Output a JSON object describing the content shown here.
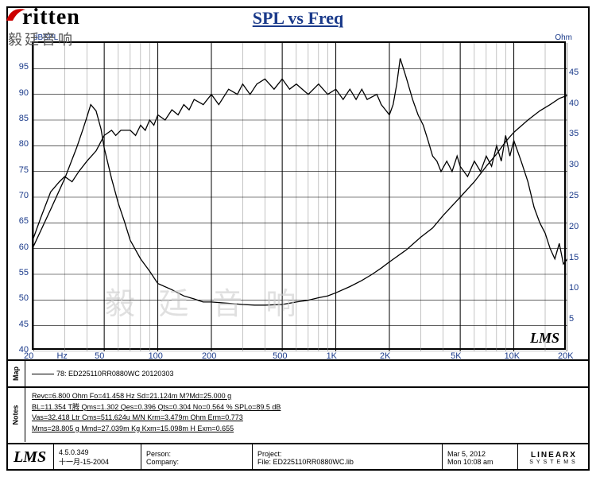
{
  "title": "SPL vs Freq",
  "logo": {
    "brand": "ritten",
    "sub": "毅廷音响"
  },
  "watermark": "毅 廷 音 响",
  "chart": {
    "type": "line",
    "x_scale": "log",
    "xlim": [
      20,
      20000
    ],
    "ylabel_left": "dBSPL",
    "ylabel_right": "Ohm",
    "ylim_left": [
      40,
      100
    ],
    "ylim_right": [
      0,
      50
    ],
    "x_ticks_major": [
      20,
      50,
      100,
      200,
      500,
      1000,
      2000,
      5000,
      10000,
      20000
    ],
    "x_tick_labels": [
      "20",
      "50",
      "100",
      "200",
      "500",
      "1K",
      "2K",
      "5K",
      "10K",
      "20K"
    ],
    "x_unit_label": "Hz",
    "y_ticks_left": [
      40,
      45,
      50,
      55,
      60,
      65,
      70,
      75,
      80,
      85,
      90,
      95
    ],
    "y_ticks_right": [
      5,
      10,
      15,
      20,
      25,
      30,
      35,
      40,
      45
    ],
    "x_minor_grid": [
      30,
      40,
      60,
      70,
      80,
      90,
      300,
      400,
      600,
      700,
      800,
      900,
      3000,
      4000,
      6000,
      7000,
      8000,
      9000,
      15000
    ],
    "line_color": "#000000",
    "grid_major_color": "#000000",
    "grid_minor_color": "#888888",
    "axis_label_color": "#1a3a8a",
    "background_color": "#ffffff",
    "corner_label": "LMS",
    "spl_series": [
      [
        20,
        62
      ],
      [
        22,
        66
      ],
      [
        25,
        71
      ],
      [
        28,
        73
      ],
      [
        30,
        74
      ],
      [
        33,
        73
      ],
      [
        36,
        75
      ],
      [
        40,
        77
      ],
      [
        45,
        79
      ],
      [
        50,
        82
      ],
      [
        55,
        83
      ],
      [
        58,
        82
      ],
      [
        62,
        83
      ],
      [
        70,
        83
      ],
      [
        75,
        82
      ],
      [
        80,
        84
      ],
      [
        85,
        83
      ],
      [
        90,
        85
      ],
      [
        95,
        84
      ],
      [
        100,
        86
      ],
      [
        110,
        85
      ],
      [
        120,
        87
      ],
      [
        130,
        86
      ],
      [
        140,
        88
      ],
      [
        150,
        87
      ],
      [
        160,
        89
      ],
      [
        180,
        88
      ],
      [
        200,
        90
      ],
      [
        220,
        88
      ],
      [
        250,
        91
      ],
      [
        280,
        90
      ],
      [
        300,
        92
      ],
      [
        330,
        90
      ],
      [
        360,
        92
      ],
      [
        400,
        93
      ],
      [
        450,
        91
      ],
      [
        500,
        93
      ],
      [
        550,
        91
      ],
      [
        600,
        92
      ],
      [
        700,
        90
      ],
      [
        800,
        92
      ],
      [
        900,
        90
      ],
      [
        1000,
        91
      ],
      [
        1100,
        89
      ],
      [
        1200,
        91
      ],
      [
        1300,
        89
      ],
      [
        1400,
        91
      ],
      [
        1500,
        89
      ],
      [
        1700,
        90
      ],
      [
        1800,
        88
      ],
      [
        1900,
        87
      ],
      [
        2000,
        86
      ],
      [
        2100,
        88
      ],
      [
        2200,
        92
      ],
      [
        2300,
        97
      ],
      [
        2400,
        95
      ],
      [
        2500,
        93
      ],
      [
        2700,
        89
      ],
      [
        2900,
        86
      ],
      [
        3100,
        84
      ],
      [
        3300,
        81
      ],
      [
        3500,
        78
      ],
      [
        3700,
        77
      ],
      [
        3900,
        75
      ],
      [
        4200,
        77
      ],
      [
        4500,
        75
      ],
      [
        4800,
        78
      ],
      [
        5000,
        76
      ],
      [
        5500,
        74
      ],
      [
        6000,
        77
      ],
      [
        6500,
        75
      ],
      [
        7000,
        78
      ],
      [
        7500,
        76
      ],
      [
        8000,
        80
      ],
      [
        8500,
        77
      ],
      [
        9000,
        82
      ],
      [
        9500,
        78
      ],
      [
        10000,
        81
      ],
      [
        11000,
        77
      ],
      [
        12000,
        73
      ],
      [
        13000,
        68
      ],
      [
        14000,
        65
      ],
      [
        15000,
        63
      ],
      [
        16000,
        60
      ],
      [
        17000,
        58
      ],
      [
        18000,
        61
      ],
      [
        19000,
        57
      ],
      [
        20000,
        58
      ]
    ],
    "impedance_series": [
      [
        20,
        17
      ],
      [
        25,
        23
      ],
      [
        30,
        28
      ],
      [
        35,
        33
      ],
      [
        38,
        36
      ],
      [
        40,
        38
      ],
      [
        42,
        40
      ],
      [
        45,
        39
      ],
      [
        48,
        36
      ],
      [
        50,
        33
      ],
      [
        55,
        28
      ],
      [
        60,
        24
      ],
      [
        65,
        21
      ],
      [
        70,
        18
      ],
      [
        80,
        15
      ],
      [
        90,
        13
      ],
      [
        100,
        11
      ],
      [
        120,
        10
      ],
      [
        140,
        9
      ],
      [
        160,
        8.5
      ],
      [
        180,
        8
      ],
      [
        200,
        8
      ],
      [
        250,
        7.8
      ],
      [
        300,
        7.6
      ],
      [
        350,
        7.5
      ],
      [
        400,
        7.5
      ],
      [
        500,
        7.6
      ],
      [
        600,
        8
      ],
      [
        700,
        8.3
      ],
      [
        800,
        8.7
      ],
      [
        900,
        9
      ],
      [
        1000,
        9.5
      ],
      [
        1200,
        10.5
      ],
      [
        1400,
        11.5
      ],
      [
        1600,
        12.5
      ],
      [
        1800,
        13.5
      ],
      [
        2000,
        14.5
      ],
      [
        2500,
        16.5
      ],
      [
        3000,
        18.5
      ],
      [
        3500,
        20
      ],
      [
        4000,
        22
      ],
      [
        5000,
        25
      ],
      [
        6000,
        27.5
      ],
      [
        7000,
        30
      ],
      [
        8000,
        32
      ],
      [
        9000,
        34
      ],
      [
        10000,
        35.5
      ],
      [
        12000,
        37.5
      ],
      [
        14000,
        39
      ],
      [
        16000,
        40
      ],
      [
        18000,
        41
      ],
      [
        20000,
        41.5
      ]
    ]
  },
  "map": {
    "label": "Map",
    "legend_prefix": "78:",
    "legend_text": "ED225110RR0880WC 20120303"
  },
  "notes": {
    "label": "Notes",
    "lines": [
      "Revc=6.800 Ohm  Fo=41.458 Hz  Sd=21.124m M?Md=25.000 g",
      "BL=11.354 T腾  Qms=1.302  Qes=0.396  Qts=0.304  No=0.564 %  SPLo=89.5 dB",
      "Vas=32.418 Ltr  Cms=511.624u M/N  Krm=3.479m Ohm  Erm=0.773",
      "Mms=28.805 g  Mmd=27.039m Kg  Kxm=15.098m H  Exm=0.655"
    ]
  },
  "footer": {
    "lms": "LMS",
    "version": "4.5.0.349",
    "version_date": "十一月-15-2004",
    "person_label": "Person:",
    "company_label": "Company:",
    "project_label": "Project:",
    "file_label": "File:",
    "file_value": "ED225110RR0880WC.lib",
    "date": "Mar  5, 2012",
    "time": "Mon 10:08 am",
    "linearx_top": "LINEARX",
    "linearx_bot": "SYSTEMS"
  }
}
